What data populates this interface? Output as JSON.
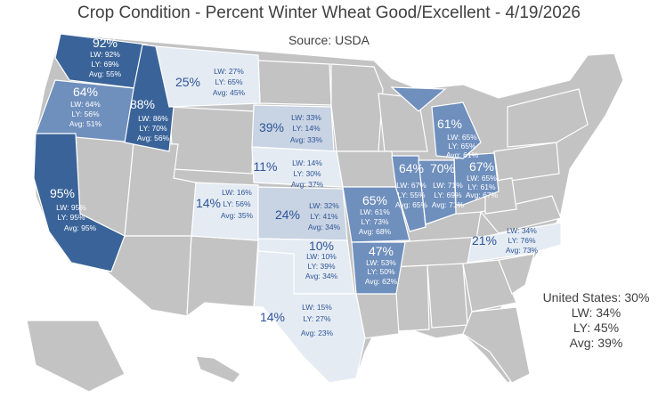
{
  "title": "Crop Condition - Percent Winter Wheat Good/Excellent - 4/19/2026",
  "source": "Source: USDA",
  "national": {
    "line1": "United States: 30%",
    "lw": "LW: 34%",
    "ly": "LY: 45%",
    "avg": "Avg: 39%"
  },
  "colors": {
    "dark": "#3a6499",
    "medium": "#6f8fbd",
    "light": "#c8d3e3",
    "pale": "#e4ebf3",
    "gray": "#c3c3c3",
    "border": "#ffffff",
    "label_dark_bg": "#ffffff",
    "label_light_bg": "#2f5597"
  },
  "chart_data": {
    "type": "map",
    "title": "Crop Condition - Percent Winter Wheat Good/Excellent - 4/19/2026",
    "subtitle": "Source: USDA",
    "states": [
      {
        "state": "WA",
        "pct": "92%",
        "lw": "LW: 92%",
        "ly": "LY: 69%",
        "avg": "Avg: 55%",
        "shade": "dark"
      },
      {
        "state": "OR",
        "pct": "64%",
        "lw": "LW: 64%",
        "ly": "LY: 56%",
        "avg": "Avg: 51%",
        "shade": "medium"
      },
      {
        "state": "ID",
        "pct": "88%",
        "lw": "LW: 86%",
        "ly": "LY: 70%",
        "avg": "Avg: 56%",
        "shade": "dark"
      },
      {
        "state": "CA",
        "pct": "95%",
        "lw": "LW: 95%",
        "ly": "LY: 95%",
        "avg": "Avg: 95%",
        "shade": "dark"
      },
      {
        "state": "MT",
        "pct": "25%",
        "lw": "LW: 27%",
        "ly": "LY: 65%",
        "avg": "Avg: 45%",
        "shade": "pale"
      },
      {
        "state": "SD",
        "pct": "39%",
        "lw": "LW: 33%",
        "ly": "LY: 14%",
        "avg": "Avg: 33%",
        "shade": "light"
      },
      {
        "state": "NE",
        "pct": "11%",
        "lw": "LW: 14%",
        "ly": "LY: 30%",
        "avg": "Avg: 37%",
        "shade": "pale"
      },
      {
        "state": "CO",
        "pct": "14%",
        "lw": "LW: 16%",
        "ly": "LY: 56%",
        "avg": "Avg: 35%",
        "shade": "pale"
      },
      {
        "state": "KS",
        "pct": "24%",
        "lw": "LW: 32%",
        "ly": "LY: 41%",
        "avg": "Avg: 34%",
        "shade": "light"
      },
      {
        "state": "OK",
        "pct": "10%",
        "lw": "LW: 10%",
        "ly": "LY: 39%",
        "avg": "Avg: 34%",
        "shade": "pale"
      },
      {
        "state": "TX",
        "pct": "14%",
        "lw": "LW: 15%",
        "ly": "LY: 27%",
        "avg": "Avg: 23%",
        "shade": "pale"
      },
      {
        "state": "MO",
        "pct": "65%",
        "lw": "LW: 61%",
        "ly": "LY: 73%",
        "avg": "Avg: 68%",
        "shade": "medium"
      },
      {
        "state": "AR",
        "pct": "47%",
        "lw": "LW: 53%",
        "ly": "LY: 50%",
        "avg": "Avg: 62%",
        "shade": "medium"
      },
      {
        "state": "IL",
        "pct": "64%",
        "lw": "LW: 67%",
        "ly": "LY: 55%",
        "avg": "Avg: 65%",
        "shade": "medium"
      },
      {
        "state": "IN",
        "pct": "70%",
        "lw": "LW: 71%",
        "ly": "LY: 69%",
        "avg": "Avg: 71%",
        "shade": "medium"
      },
      {
        "state": "OH",
        "pct": "67%",
        "lw": "LW: 65%",
        "ly": "LY: 61%",
        "avg": "Avg: 67%",
        "shade": "medium"
      },
      {
        "state": "MI",
        "pct": "61%",
        "lw": "LW: 65%",
        "ly": "LY: 65%",
        "avg": "Avg: 61%",
        "shade": "medium"
      },
      {
        "state": "NC",
        "pct": "21%",
        "lw": "LW: 34%",
        "ly": "LY: 76%",
        "avg": "Avg: 73%",
        "shade": "pale"
      }
    ]
  }
}
